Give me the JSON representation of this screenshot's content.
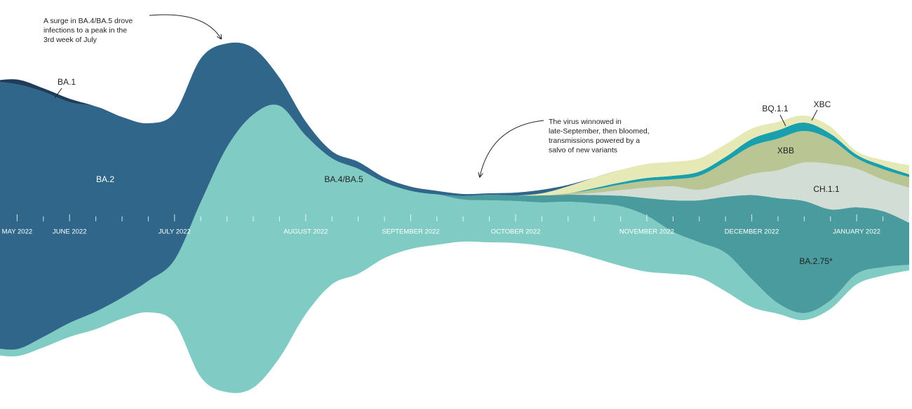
{
  "chart_data": {
    "type": "streamgraph",
    "categories": [
      null,
      "MAY 2022",
      null,
      "JUNE 2022",
      null,
      null,
      null,
      "JULY 2022",
      null,
      null,
      null,
      null,
      "AUGUST 2022",
      null,
      null,
      null,
      "SEPTEMBER 2022",
      null,
      null,
      null,
      "OCTOBER 2022",
      null,
      null,
      null,
      null,
      "NOVEMBER 2022",
      null,
      null,
      null,
      "DECEMBER 2022",
      null,
      null,
      null,
      "JANUARY 2022",
      null,
      null
    ],
    "series": [
      {
        "name": "BA.4/BA.5",
        "color": "#80ccc4",
        "values": [
          10,
          10,
          15,
          20,
          25,
          30,
          45,
          90,
          250,
          350,
          390,
          360,
          255,
          180,
          150,
          108,
          83,
          72,
          60,
          60,
          60,
          62,
          70,
          78,
          85,
          80,
          60,
          50,
          55,
          40,
          15,
          10,
          12,
          15,
          12,
          8
        ]
      },
      {
        "name": "BA.2.75*",
        "color": "#4a9b9d",
        "values": [
          0,
          0,
          0,
          0,
          0,
          0,
          0,
          0,
          0,
          0,
          0,
          0,
          0,
          0,
          0,
          0,
          0,
          0,
          5,
          8,
          8,
          10,
          10,
          12,
          15,
          25,
          45,
          60,
          80,
          120,
          150,
          160,
          130,
          95,
          80,
          60
        ]
      },
      {
        "name": "CH.1.1",
        "color": "#d1ddd5",
        "values": [
          0,
          0,
          0,
          0,
          0,
          0,
          0,
          0,
          0,
          0,
          0,
          0,
          0,
          0,
          0,
          0,
          0,
          0,
          0,
          0,
          0,
          0,
          0,
          3,
          8,
          15,
          20,
          15,
          20,
          30,
          40,
          55,
          65,
          55,
          45,
          50
        ]
      },
      {
        "name": "XBB",
        "color": "#b9c592",
        "values": [
          0,
          0,
          0,
          0,
          0,
          0,
          0,
          0,
          0,
          0,
          0,
          0,
          0,
          0,
          0,
          0,
          0,
          0,
          0,
          0,
          0,
          0,
          2,
          5,
          8,
          10,
          10,
          20,
          30,
          40,
          45,
          45,
          35,
          15,
          15,
          15
        ]
      },
      {
        "name": "XBC",
        "color": "#1aa0ac",
        "values": [
          0,
          0,
          0,
          0,
          0,
          0,
          0,
          0,
          0,
          0,
          0,
          0,
          0,
          0,
          0,
          0,
          0,
          0,
          0,
          0,
          0,
          0,
          0,
          2,
          3,
          4,
          5,
          6,
          7,
          10,
          12,
          12,
          8,
          5,
          5,
          4
        ]
      },
      {
        "name": "BQ.1.1",
        "color": "#e6e9b6",
        "values": [
          0,
          0,
          0,
          0,
          0,
          0,
          0,
          0,
          0,
          0,
          0,
          0,
          0,
          0,
          0,
          0,
          0,
          0,
          0,
          0,
          0,
          3,
          10,
          15,
          18,
          20,
          20,
          19,
          18,
          15,
          12,
          10,
          10,
          5,
          8,
          13
        ]
      },
      {
        "name": "BA.2",
        "color": "#2f6689",
        "values": [
          380,
          378,
          350,
          315,
          293,
          258,
          225,
          210,
          205,
          148,
          95,
          40,
          20,
          10,
          10,
          7,
          6,
          5,
          3,
          2,
          4,
          5,
          2,
          0,
          0,
          0,
          0,
          0,
          0,
          0,
          0,
          0,
          0,
          0,
          0,
          0
        ]
      },
      {
        "name": "BA.1",
        "color": "#1e3d5a",
        "values": [
          0,
          7,
          5,
          5,
          0,
          0,
          0,
          0,
          0,
          0,
          0,
          0,
          0,
          0,
          0,
          0,
          0,
          0,
          0,
          0,
          0,
          0,
          0,
          0,
          0,
          0,
          0,
          0,
          0,
          0,
          0,
          0,
          0,
          0,
          0,
          0
        ]
      }
    ],
    "annotations": [
      {
        "text": [
          "A surge in BA.4/BA.5 drove",
          "infections to a peak in the",
          "3rd week of July"
        ]
      },
      {
        "text": [
          "The virus winnowed in",
          "late-September, then bloomed,",
          "transmissions powered by a",
          "salvo of new variants"
        ]
      }
    ]
  }
}
